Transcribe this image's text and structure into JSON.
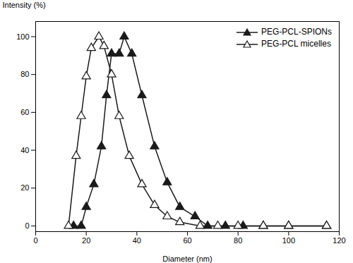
{
  "chart_data": {
    "type": "line",
    "xlabel": "Diameter (nm)",
    "ylabel": "Intensity (%)",
    "xlim": [
      0,
      120
    ],
    "ylim": [
      -3,
      108
    ],
    "xticks": [
      0,
      20,
      40,
      60,
      80,
      100,
      120
    ],
    "yticks": [
      0,
      20,
      40,
      60,
      80,
      100
    ],
    "grid": false,
    "legend": "upper right",
    "series": [
      {
        "name": "PEG-PCL-SPIONs",
        "color": "#1a1a1a",
        "marker": "triangle_filled",
        "x": [
          15,
          18,
          20,
          23,
          26,
          28,
          30,
          33,
          35,
          38,
          42,
          47,
          52,
          57,
          63,
          68,
          75,
          82,
          90,
          100,
          115
        ],
        "values": [
          0,
          0,
          10,
          22,
          42,
          69,
          91,
          91,
          100,
          91,
          69,
          42,
          23,
          10,
          5,
          0,
          0,
          0,
          0,
          0,
          0
        ]
      },
      {
        "name": "PEG-PCL micelles",
        "color": "#1a1a1a",
        "marker": "triangle_open",
        "x": [
          13,
          16,
          18,
          20,
          22,
          25,
          27,
          30,
          33,
          37,
          42,
          47,
          52,
          57,
          65,
          72,
          80,
          90,
          100,
          115
        ],
        "values": [
          0,
          37,
          58,
          79,
          94,
          100,
          95,
          80,
          58,
          37,
          22,
          11,
          5,
          2,
          0,
          0,
          0,
          0,
          0,
          0
        ]
      }
    ]
  }
}
